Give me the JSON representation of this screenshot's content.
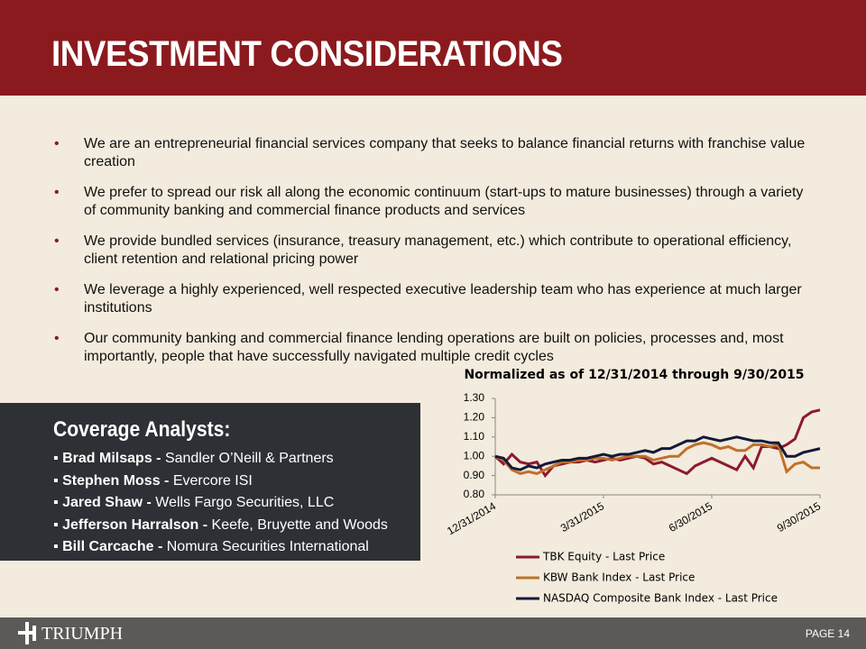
{
  "header": {
    "title": "INVESTMENT CONSIDERATIONS"
  },
  "bullets": [
    "We are an entrepreneurial financial services company that seeks to balance financial returns with franchise value creation",
    "We prefer to spread our risk all along the economic continuum (start-ups to mature businesses) through a variety of community banking and commercial finance products and services",
    "We provide bundled services (insurance, treasury management, etc.) which contribute to operational efficiency, client retention and relational pricing power",
    "We leverage a highly experienced, well respected executive leadership team who has experience at much larger institutions",
    "Our community banking and commercial finance lending operations are built on policies, processes and, most importantly, people that have successfully navigated multiple credit cycles"
  ],
  "coverage": {
    "title": "Coverage Analysts:",
    "analysts": [
      {
        "name": "Brad Milsaps -",
        "firm": "Sandler O’Neill & Partners"
      },
      {
        "name": "Stephen Moss -",
        "firm": "Evercore ISI"
      },
      {
        "name": "Jared Shaw -",
        "firm": "Wells Fargo Securities, LLC"
      },
      {
        "name": "Jefferson Harralson -",
        "firm": "Keefe, Bruyette and Woods"
      },
      {
        "name": "Bill Carcache -",
        "firm": "Nomura Securities International"
      }
    ]
  },
  "chart_data": {
    "type": "line",
    "title": "Normalized as of  12/31/2014 through 9/30/2015",
    "categories": [
      "12/31/2014",
      null,
      null,
      null,
      null,
      null,
      null,
      null,
      null,
      null,
      null,
      null,
      null,
      "3/31/2015",
      null,
      null,
      null,
      null,
      null,
      null,
      null,
      null,
      null,
      null,
      null,
      null,
      "6/30/2015",
      null,
      null,
      null,
      null,
      null,
      null,
      null,
      null,
      null,
      null,
      null,
      null,
      "9/30/2015"
    ],
    "ylim": [
      0.8,
      1.3
    ],
    "yticks": [
      {
        "value": 0.8,
        "label": "0.80"
      },
      {
        "value": 0.9,
        "label": "0.90"
      },
      {
        "value": 1.0,
        "label": "1.00"
      },
      {
        "value": 1.1,
        "label": "1.10"
      },
      {
        "value": 1.2,
        "label": "1.20"
      },
      {
        "value": 1.3,
        "label": "1.30"
      }
    ],
    "series": [
      {
        "name": "TBK Equity - Last Price",
        "color": "#8b1a2e",
        "values": [
          1.0,
          0.96,
          1.01,
          0.97,
          0.96,
          0.97,
          0.9,
          0.95,
          0.96,
          0.97,
          0.97,
          0.98,
          0.97,
          0.98,
          0.99,
          0.98,
          0.99,
          1.0,
          0.99,
          0.96,
          0.97,
          0.95,
          0.93,
          0.91,
          0.95,
          0.97,
          0.99,
          0.97,
          0.95,
          0.93,
          1.0,
          0.94,
          1.05,
          1.05,
          1.04,
          1.06,
          1.09,
          1.2,
          1.23,
          1.24
        ]
      },
      {
        "name": "KBW Bank Index - Last Price",
        "color": "#c0702a",
        "values": [
          1.0,
          0.98,
          0.93,
          0.91,
          0.92,
          0.91,
          0.93,
          0.95,
          0.97,
          0.97,
          0.98,
          0.98,
          0.99,
          0.99,
          0.98,
          0.99,
          1.0,
          1.0,
          1.0,
          0.98,
          0.99,
          1.0,
          1.0,
          1.04,
          1.06,
          1.07,
          1.06,
          1.04,
          1.05,
          1.03,
          1.03,
          1.06,
          1.06,
          1.05,
          1.06,
          0.92,
          0.96,
          0.97,
          0.94,
          0.94
        ]
      },
      {
        "name": "NASDAQ Composite Bank Index - Last Price",
        "color": "#13193a",
        "values": [
          1.0,
          0.99,
          0.94,
          0.93,
          0.95,
          0.94,
          0.96,
          0.97,
          0.98,
          0.98,
          0.99,
          0.99,
          1.0,
          1.01,
          1.0,
          1.01,
          1.01,
          1.02,
          1.03,
          1.02,
          1.04,
          1.04,
          1.06,
          1.08,
          1.08,
          1.1,
          1.09,
          1.08,
          1.09,
          1.1,
          1.09,
          1.08,
          1.08,
          1.07,
          1.07,
          1.0,
          1.0,
          1.02,
          1.03,
          1.04
        ]
      }
    ]
  },
  "footer": {
    "logo": "TRIUMPH",
    "page": "PAGE 14"
  }
}
